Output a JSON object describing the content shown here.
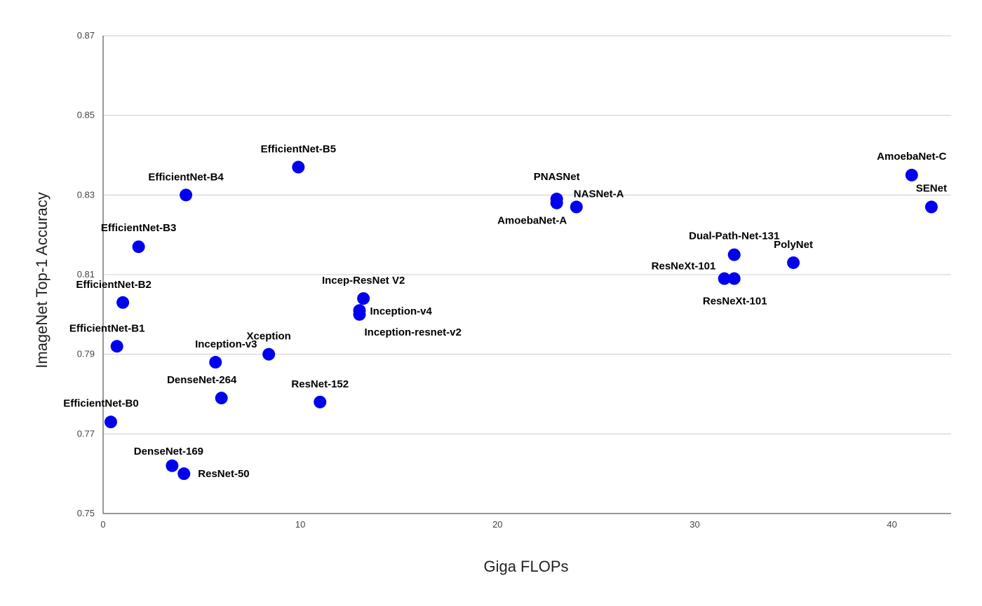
{
  "chart_data": {
    "type": "scatter",
    "title": "",
    "xlabel": "Giga FLOPs",
    "ylabel": "ImageNet Top-1 Accuracy",
    "xlim": [
      0,
      43
    ],
    "ylim": [
      0.75,
      0.87
    ],
    "x_ticks": [
      0,
      10,
      20,
      30,
      40
    ],
    "y_ticks": [
      0.75,
      0.77,
      0.79,
      0.81,
      0.83,
      0.85,
      0.87
    ],
    "y_tick_labels": [
      "0.75",
      "0.77",
      "0.79",
      "0.81",
      "0.83",
      "0.85",
      "0.87"
    ],
    "grid": "horizontal",
    "legend": "none",
    "point_color": "#0000ee",
    "points": [
      {
        "label": "EfficientNet-B0",
        "x": 0.39,
        "y": 0.773
      },
      {
        "label": "EfficientNet-B1",
        "x": 0.7,
        "y": 0.792
      },
      {
        "label": "EfficientNet-B2",
        "x": 1.0,
        "y": 0.803
      },
      {
        "label": "EfficientNet-B3",
        "x": 1.8,
        "y": 0.817
      },
      {
        "label": "EfficientNet-B4",
        "x": 4.2,
        "y": 0.83
      },
      {
        "label": "EfficientNet-B5",
        "x": 9.9,
        "y": 0.837
      },
      {
        "label": "DenseNet-169",
        "x": 3.5,
        "y": 0.762
      },
      {
        "label": "ResNet-50",
        "x": 4.1,
        "y": 0.76
      },
      {
        "label": "Inception-v3",
        "x": 5.7,
        "y": 0.788
      },
      {
        "label": "DenseNet-264",
        "x": 6.0,
        "y": 0.779
      },
      {
        "label": "Xception",
        "x": 8.4,
        "y": 0.79
      },
      {
        "label": "ResNet-152",
        "x": 11.0,
        "y": 0.778
      },
      {
        "label": "Incep-ResNet V2",
        "x": 13.2,
        "y": 0.804
      },
      {
        "label": "Inception-v4",
        "x": 13.0,
        "y": 0.801
      },
      {
        "label": "Inception-resnet-v2",
        "x": 13.0,
        "y": 0.8
      },
      {
        "label": "PNASNet",
        "x": 23.0,
        "y": 0.829
      },
      {
        "label": "AmoebaNet-A",
        "x": 23.0,
        "y": 0.828
      },
      {
        "label": "NASNet-A",
        "x": 24.0,
        "y": 0.827
      },
      {
        "label": "Dual-Path-Net-131",
        "x": 32.0,
        "y": 0.815
      },
      {
        "label": "ResNeXt-101",
        "x": 31.5,
        "y": 0.809
      },
      {
        "label": "ResNeXt-101",
        "x": 32.0,
        "y": 0.809
      },
      {
        "label": "PolyNet",
        "x": 35.0,
        "y": 0.813
      },
      {
        "label": "AmoebaNet-C",
        "x": 41.0,
        "y": 0.835
      },
      {
        "label": "SENet",
        "x": 42.0,
        "y": 0.827
      }
    ]
  }
}
